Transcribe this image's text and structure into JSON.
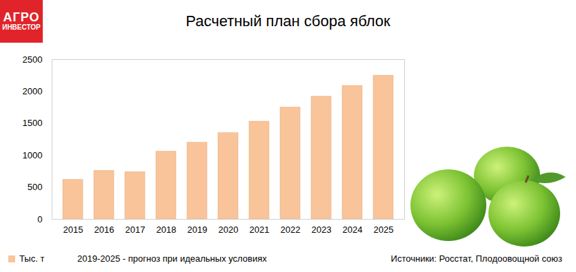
{
  "chart_data": {
    "type": "bar",
    "title": "Расчетный план сбора яблок",
    "logo": [
      "АГРО",
      "ИНВЕСТОР"
    ],
    "categories": [
      "2015",
      "2016",
      "2017",
      "2018",
      "2019",
      "2020",
      "2021",
      "2022",
      "2023",
      "2024",
      "2025"
    ],
    "series": [
      {
        "name": "Тыс. т",
        "color": "#f9c49a",
        "values": [
          620,
          760,
          740,
          1060,
          1200,
          1350,
          1530,
          1750,
          1920,
          2090,
          2250
        ]
      }
    ],
    "ylim": [
      0,
      2500
    ],
    "yticks": [
      0,
      500,
      1000,
      1500,
      2000,
      2500
    ],
    "grid": false,
    "legend": "bottom-left",
    "annotations": [
      "2019-2025 - прогноз при идеальных условиях",
      "Источники: Росстат, Плодоовощной союз"
    ]
  }
}
